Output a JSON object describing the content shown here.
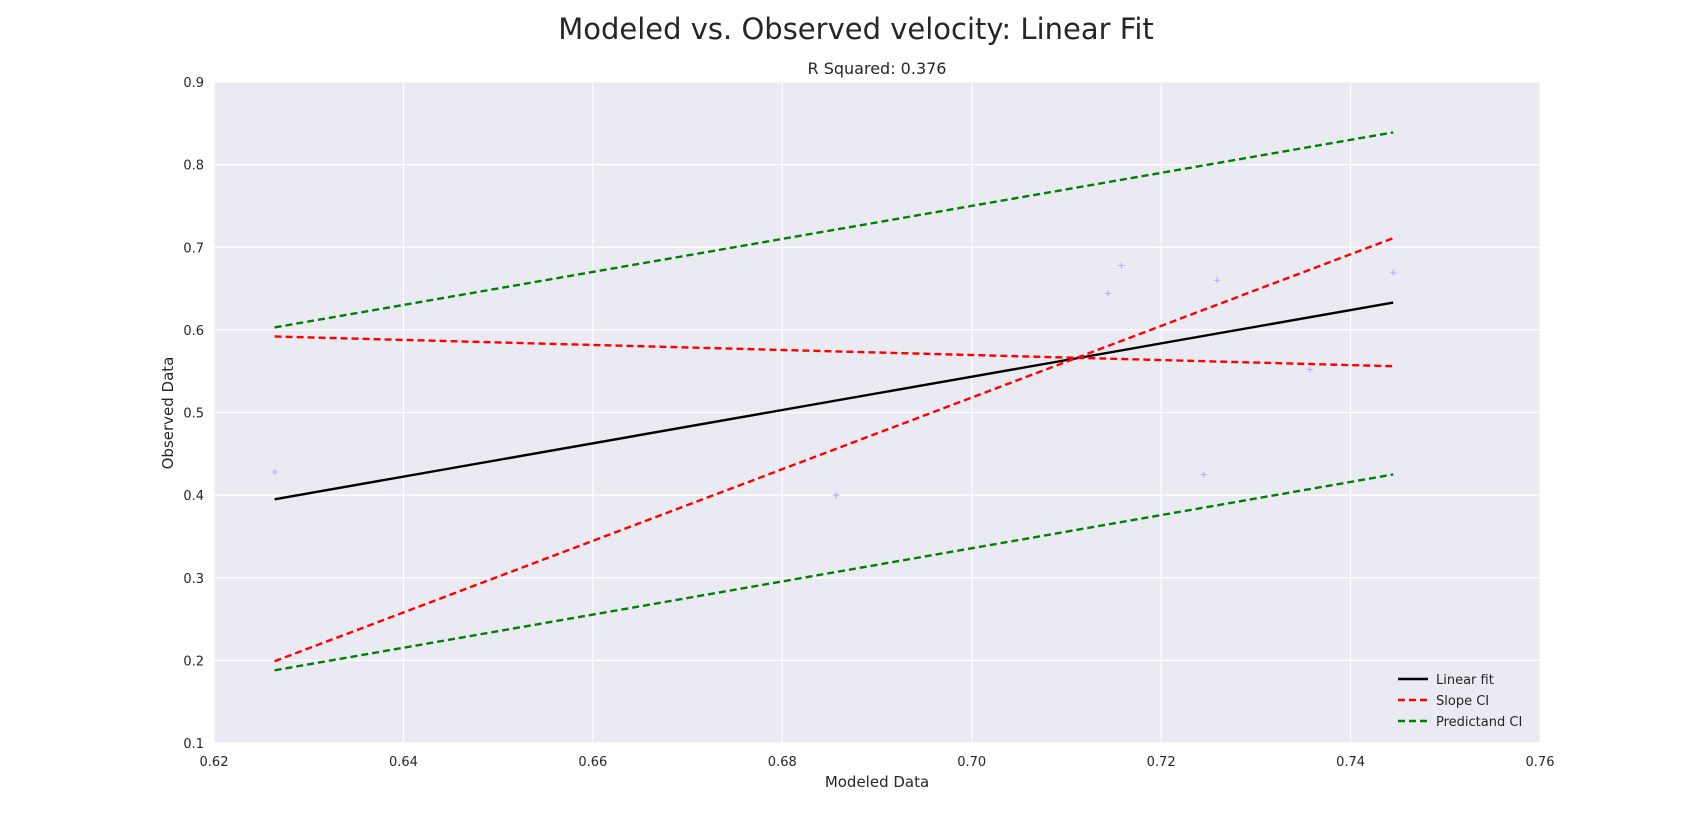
{
  "chart_data": {
    "type": "line",
    "title": "Modeled vs. Observed velocity: Linear Fit",
    "subtitle": "R Squared: 0.376",
    "xlabel": "Modeled Data",
    "ylabel": "Observed Data",
    "xlim": [
      0.62,
      0.76
    ],
    "ylim": [
      0.1,
      0.9
    ],
    "xticks": [
      "0.62",
      "0.64",
      "0.66",
      "0.68",
      "0.70",
      "0.72",
      "0.74",
      "0.76"
    ],
    "yticks": [
      "0.1",
      "0.2",
      "0.3",
      "0.4",
      "0.5",
      "0.6",
      "0.7",
      "0.8",
      "0.9"
    ],
    "grid": true,
    "legend_position": "lower-right",
    "scatter": {
      "color": "#aaaaff",
      "marker": "+",
      "points": [
        [
          0.6264,
          0.428
        ],
        [
          0.6857,
          0.4
        ],
        [
          0.7144,
          0.644
        ],
        [
          0.7158,
          0.678
        ],
        [
          0.7245,
          0.425
        ],
        [
          0.7259,
          0.66
        ],
        [
          0.7357,
          0.552
        ],
        [
          0.7445,
          0.669
        ]
      ]
    },
    "series": [
      {
        "name": "Linear fit",
        "color": "#000000",
        "dash": "solid",
        "x": [
          0.6264,
          0.7445
        ],
        "y": [
          0.395,
          0.633
        ]
      },
      {
        "name": "Slope CI",
        "color": "#ff0000",
        "dash": "dashed",
        "x": [
          0.6264,
          0.7445
        ],
        "y": [
          0.592,
          0.556
        ]
      },
      {
        "name": "Slope CI",
        "color": "#ff0000",
        "dash": "dashed",
        "x": [
          0.6264,
          0.7445
        ],
        "y": [
          0.199,
          0.711
        ],
        "legend": false
      },
      {
        "name": "Predictand CI",
        "color": "#008000",
        "dash": "dashed",
        "x": [
          0.6264,
          0.7445
        ],
        "y": [
          0.603,
          0.839
        ]
      },
      {
        "name": "Predictand CI",
        "color": "#008000",
        "dash": "dashed",
        "x": [
          0.6264,
          0.7445
        ],
        "y": [
          0.188,
          0.425
        ],
        "legend": false
      }
    ],
    "colors": {
      "plot_background": "#eaeaf2",
      "grid": "#ffffff"
    }
  }
}
